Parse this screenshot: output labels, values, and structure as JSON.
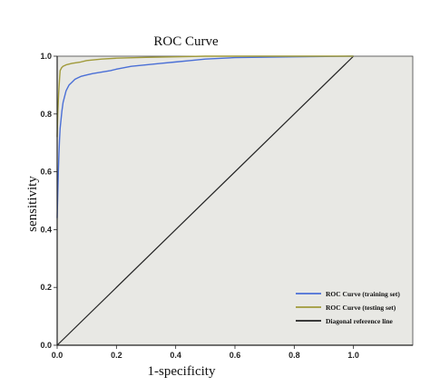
{
  "chart_data": {
    "type": "line",
    "title": "ROC Curve",
    "xlabel": "1-specificity",
    "ylabel": "sensitivity",
    "xlim": [
      0,
      1.2
    ],
    "ylim": [
      0,
      1.0
    ],
    "x_ticks": [
      "0.0",
      "0.2",
      "0.4",
      "0.6",
      "0.8",
      "1.0"
    ],
    "y_ticks": [
      "0.0",
      "0.2",
      "0.4",
      "0.6",
      "0.8",
      "1.0"
    ],
    "grid": false,
    "legend_position": "bottom-right",
    "background": "#e8e8e4",
    "series": [
      {
        "name": "ROC Curve (training set)",
        "color": "#4a6fd6",
        "x": [
          0,
          0.002,
          0.004,
          0.006,
          0.008,
          0.01,
          0.013,
          0.016,
          0.02,
          0.025,
          0.03,
          0.035,
          0.04,
          0.05,
          0.06,
          0.07,
          0.08,
          0.1,
          0.12,
          0.15,
          0.18,
          0.2,
          0.25,
          0.3,
          0.35,
          0.4,
          0.45,
          0.5,
          0.6,
          0.8,
          1.0
        ],
        "y": [
          0.44,
          0.52,
          0.6,
          0.66,
          0.71,
          0.75,
          0.78,
          0.81,
          0.84,
          0.86,
          0.88,
          0.89,
          0.9,
          0.91,
          0.92,
          0.925,
          0.93,
          0.935,
          0.94,
          0.945,
          0.95,
          0.955,
          0.965,
          0.97,
          0.975,
          0.98,
          0.985,
          0.99,
          0.995,
          0.998,
          1.0
        ]
      },
      {
        "name": "ROC Curve (testing set)",
        "color": "#a09a3a",
        "x": [
          0,
          0.002,
          0.005,
          0.008,
          0.01,
          0.015,
          0.02,
          0.03,
          0.05,
          0.08,
          0.1,
          0.15,
          0.2,
          0.3,
          0.4,
          0.5,
          0.6,
          0.8,
          1.0
        ],
        "y": [
          0.72,
          0.8,
          0.87,
          0.92,
          0.95,
          0.96,
          0.965,
          0.97,
          0.975,
          0.98,
          0.985,
          0.99,
          0.993,
          0.996,
          0.998,
          1.0,
          1.0,
          1.0,
          1.0
        ]
      },
      {
        "name": "Diagonal reference line",
        "color": "#222222",
        "x": [
          0,
          1.0
        ],
        "y": [
          0,
          1.0
        ]
      }
    ]
  }
}
